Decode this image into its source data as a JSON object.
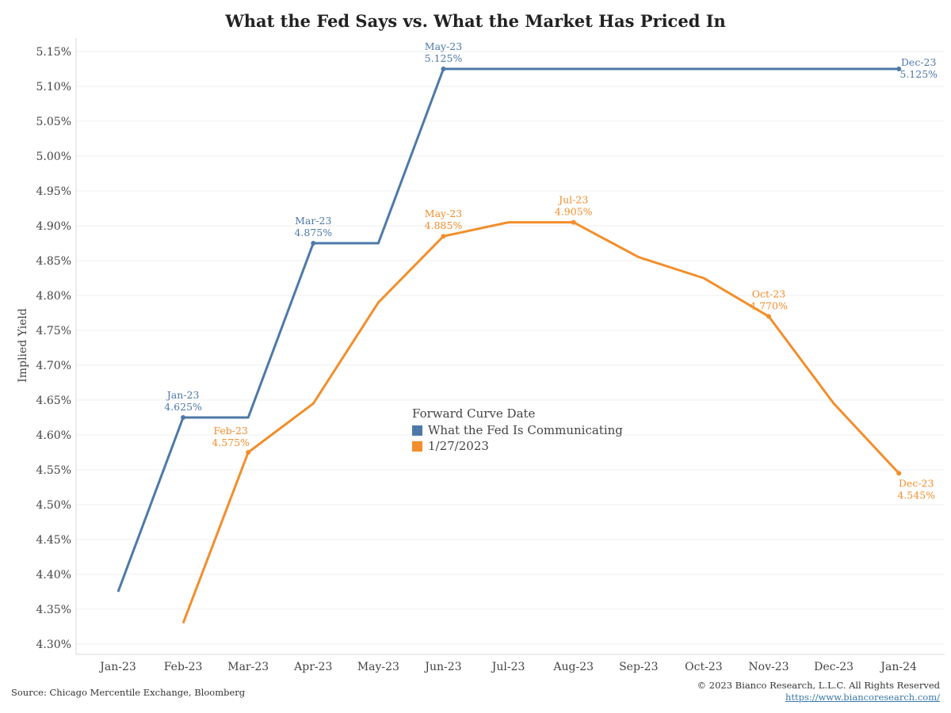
{
  "chart_data": {
    "type": "line",
    "title": "What the Fed Says vs. What the Market Has Priced In",
    "ylabel": "Implied Yield",
    "xlabel": "",
    "categories": [
      "Jan-23",
      "Feb-23",
      "Mar-23",
      "Apr-23",
      "May-23",
      "Jun-23",
      "Jul-23",
      "Aug-23",
      "Sep-23",
      "Oct-23",
      "Nov-23",
      "Dec-23",
      "Jan-24"
    ],
    "yticks": [
      "4.30%",
      "4.35%",
      "4.40%",
      "4.45%",
      "4.50%",
      "4.55%",
      "4.60%",
      "4.65%",
      "4.70%",
      "4.75%",
      "4.80%",
      "4.85%",
      "4.90%",
      "4.95%",
      "5.00%",
      "5.05%",
      "5.10%",
      "5.15%"
    ],
    "ylim": [
      4.3,
      5.15
    ],
    "grid": "horizontal",
    "legend": {
      "title": "Forward Curve Date",
      "position": "center",
      "entries": [
        "What the Fed Is Communicating",
        "1/27/2023"
      ]
    },
    "series": [
      {
        "name": "What the Fed Is Communicating",
        "color": "#4e79a7",
        "points": [
          {
            "x": 0,
            "y": 4.375
          },
          {
            "x": 1,
            "y": 4.625
          },
          {
            "x": 2,
            "y": 4.625
          },
          {
            "x": 3,
            "y": 4.875
          },
          {
            "x": 4,
            "y": 4.875
          },
          {
            "x": 5,
            "y": 5.125
          },
          {
            "x": 6,
            "y": 5.125
          },
          {
            "x": 7,
            "y": 5.125
          },
          {
            "x": 8,
            "y": 5.125
          },
          {
            "x": 9,
            "y": 5.125
          },
          {
            "x": 10,
            "y": 5.125
          },
          {
            "x": 11,
            "y": 5.125
          },
          {
            "x": 12,
            "y": 5.125
          }
        ],
        "labels": [
          {
            "x": 1,
            "y": 4.625,
            "date": "Jan-23",
            "value": "4.625%",
            "pos": "above"
          },
          {
            "x": 3,
            "y": 4.875,
            "date": "Mar-23",
            "value": "4.875%",
            "pos": "above"
          },
          {
            "x": 5,
            "y": 5.125,
            "date": "May-23",
            "value": "5.125%",
            "pos": "above"
          },
          {
            "x": 12,
            "y": 5.125,
            "date": "Dec-23",
            "value": "5.125%",
            "pos": "right"
          }
        ]
      },
      {
        "name": "1/27/2023",
        "color": "#f28e2b",
        "points": [
          {
            "x": 1,
            "y": 4.33
          },
          {
            "x": 2,
            "y": 4.575
          },
          {
            "x": 3,
            "y": 4.645
          },
          {
            "x": 4,
            "y": 4.79
          },
          {
            "x": 5,
            "y": 4.885
          },
          {
            "x": 6,
            "y": 4.905
          },
          {
            "x": 7,
            "y": 4.905
          },
          {
            "x": 8,
            "y": 4.855
          },
          {
            "x": 9,
            "y": 4.825
          },
          {
            "x": 10,
            "y": 4.77
          },
          {
            "x": 11,
            "y": 4.645
          },
          {
            "x": 12,
            "y": 4.545
          }
        ],
        "labels": [
          {
            "x": 2,
            "y": 4.575,
            "date": "Feb-23",
            "value": "4.575%",
            "pos": "left"
          },
          {
            "x": 5,
            "y": 4.885,
            "date": "May-23",
            "value": "4.885%",
            "pos": "above"
          },
          {
            "x": 7,
            "y": 4.905,
            "date": "Jul-23",
            "value": "4.905%",
            "pos": "above"
          },
          {
            "x": 10,
            "y": 4.77,
            "date": "Oct-23",
            "value": "4.770%",
            "pos": "above"
          },
          {
            "x": 12,
            "y": 4.545,
            "date": "Dec-23",
            "value": "4.545%",
            "pos": "below"
          }
        ]
      }
    ]
  },
  "footer": {
    "source": "Source: Chicago Mercentile Exchange, Bloomberg",
    "copyright": "© 2023 Bianco Research, L.L.C. All Rights Reserved",
    "link": "https://www.biancoresearch.com/"
  }
}
